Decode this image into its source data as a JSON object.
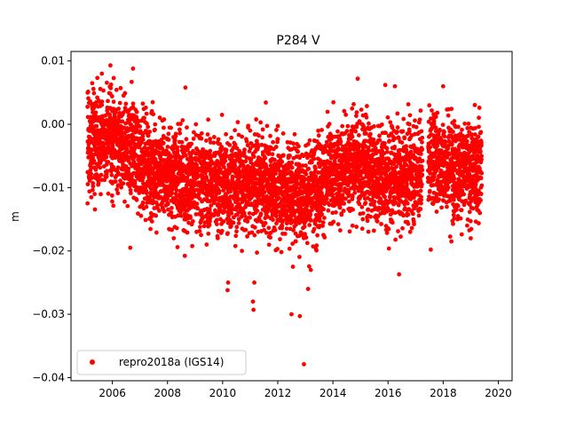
{
  "chart_data": {
    "type": "scatter",
    "title": "P284 V",
    "xlabel": "",
    "ylabel": "m",
    "xlim": [
      2004.5,
      2020.5
    ],
    "ylim": [
      -0.0405,
      0.0115
    ],
    "xticks": [
      2006,
      2008,
      2010,
      2012,
      2014,
      2016,
      2018,
      2020
    ],
    "xtick_labels": [
      "2006",
      "2008",
      "2010",
      "2012",
      "2014",
      "2016",
      "2018",
      "2020"
    ],
    "yticks": [
      0.01,
      0.0,
      -0.01,
      -0.02,
      -0.03,
      -0.04
    ],
    "ytick_labels": [
      "0.01",
      "0.00",
      "−0.01",
      "−0.02",
      "−0.03",
      "−0.04"
    ],
    "grid": false,
    "legend_position": "lower-left",
    "series": [
      {
        "name": "repro2018a (IGS14)",
        "color": "#ff0000",
        "marker": "circle",
        "coverage": [
          [
            2005.1,
            2017.25
          ],
          [
            2017.45,
            2019.4
          ]
        ],
        "trend": [
          [
            2005.1,
            -0.003
          ],
          [
            2006.0,
            -0.002
          ],
          [
            2007.0,
            -0.006
          ],
          [
            2008.0,
            -0.008
          ],
          [
            2009.0,
            -0.009
          ],
          [
            2010.0,
            -0.0095
          ],
          [
            2011.0,
            -0.009
          ],
          [
            2012.0,
            -0.01
          ],
          [
            2013.0,
            -0.011
          ],
          [
            2014.0,
            -0.008
          ],
          [
            2015.0,
            -0.006
          ],
          [
            2016.0,
            -0.009
          ],
          [
            2017.25,
            -0.007
          ],
          [
            2017.5,
            -0.005
          ],
          [
            2018.0,
            -0.006
          ],
          [
            2019.0,
            -0.008
          ],
          [
            2019.4,
            -0.006
          ]
        ],
        "scatter_sd": 0.0038,
        "sample_points": [
          [
            2005.62,
            0.008
          ],
          [
            2005.93,
            0.0093
          ],
          [
            2006.75,
            0.0088
          ],
          [
            2006.7,
            0.0067
          ],
          [
            2008.65,
            0.0058
          ],
          [
            2014.9,
            0.0072
          ],
          [
            2015.9,
            0.0062
          ],
          [
            2016.25,
            0.006
          ],
          [
            2018.0,
            0.006
          ],
          [
            2010.7,
            -0.02
          ],
          [
            2010.18,
            -0.0262
          ],
          [
            2010.2,
            -0.025
          ],
          [
            2011.1,
            -0.028
          ],
          [
            2011.12,
            -0.0293
          ],
          [
            2011.15,
            -0.025
          ],
          [
            2012.5,
            -0.03
          ],
          [
            2012.55,
            -0.0225
          ],
          [
            2012.8,
            -0.0303
          ],
          [
            2012.95,
            -0.0379
          ],
          [
            2013.1,
            -0.026
          ],
          [
            2013.2,
            -0.023
          ],
          [
            2016.4,
            -0.0237
          ],
          [
            2017.55,
            -0.0198
          ],
          [
            2018.3,
            -0.0185
          ],
          [
            2019.0,
            -0.018
          ],
          [
            2006.65,
            -0.0195
          ],
          [
            2005.1,
            -0.0125
          ]
        ]
      }
    ]
  }
}
